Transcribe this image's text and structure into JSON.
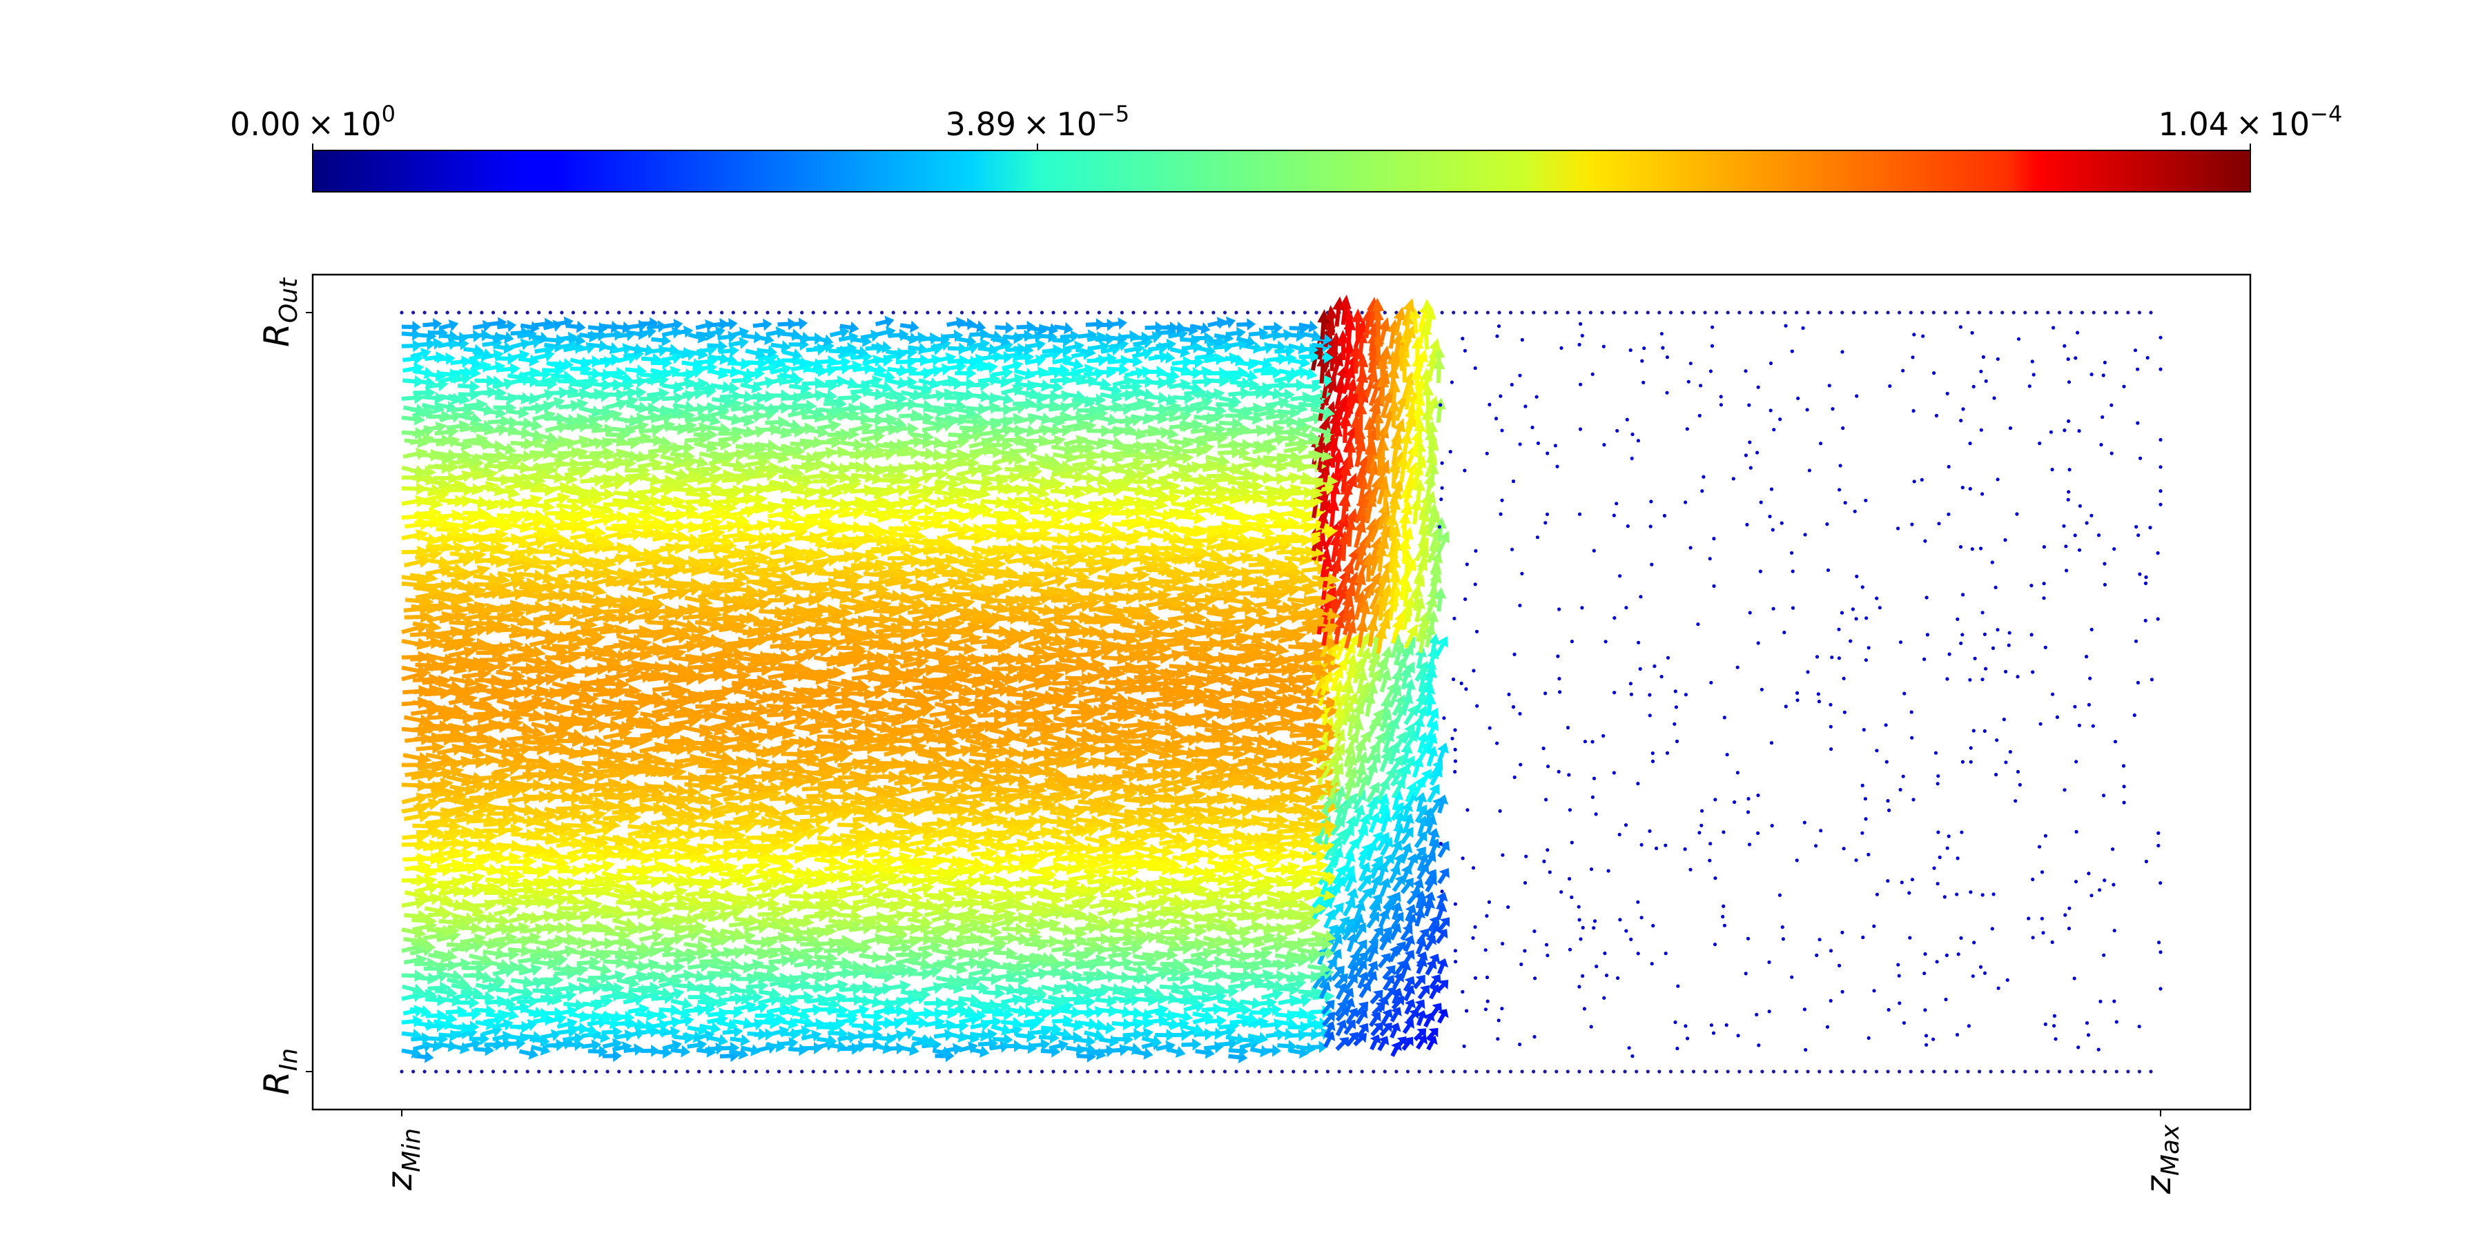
{
  "chart_data": {
    "type": "quiver",
    "title": "",
    "colorbar": {
      "colormap": "jet",
      "min": 0,
      "max": 0.000104,
      "orientation": "horizontal",
      "placement": "top",
      "ticks": [
        {
          "value": 0,
          "mantissa": "0.00",
          "times": "×",
          "base": "10",
          "exp": "0"
        },
        {
          "value": 3.89e-05,
          "mantissa": "3.89",
          "times": "×",
          "base": "10",
          "exp": "−5"
        },
        {
          "value": 0.000104,
          "mantissa": "1.04",
          "times": "×",
          "base": "10",
          "exp": "−4"
        }
      ]
    },
    "x_axis": {
      "ticks": [
        {
          "position": "min",
          "main": "z",
          "sub": "Min"
        },
        {
          "position": "max",
          "main": "z",
          "sub": "Max"
        }
      ],
      "label_rotation": "vertical"
    },
    "y_axis": {
      "ticks": [
        {
          "position": "min",
          "main": "R",
          "sub": "In"
        },
        {
          "position": "max",
          "main": "R",
          "sub": "Out"
        }
      ],
      "label_rotation": "vertical"
    },
    "grid": false,
    "legend": "none",
    "field": {
      "description_of_domain": "normalized z from 0 (zMin) to 1 (zMax); normalized r from 0 (RIn) to 1 (ROut)",
      "flow_front_z": 0.53,
      "front_band_width": 0.05,
      "inlet_profile_peak": 7.5e-05,
      "front_peak": 0.000104,
      "wall_row_magnitude": 0,
      "downstream_magnitude": 0
    }
  }
}
